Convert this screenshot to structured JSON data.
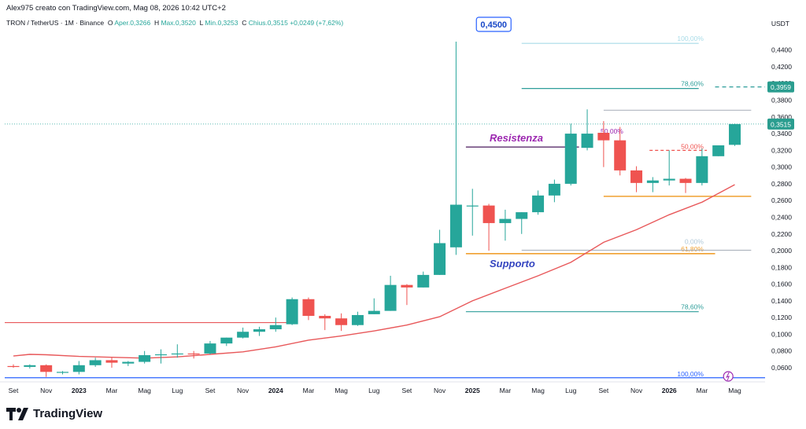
{
  "header": {
    "created_line": "Alex975 creato con TradingView.com, Mag 08, 2026 10:42 UTC+2",
    "symbol_line": "TRON / TetherUS · 1M · Binance",
    "ohlc": {
      "o_label": "O",
      "o_value": "Aper.0,3266",
      "h_label": "H",
      "h_value": "Max.0,3520",
      "l_label": "L",
      "l_value": "Min.0,3253",
      "c_label": "C",
      "c_value": "Chius.0,3515",
      "change": "+0,0249 (+7,62%)"
    }
  },
  "brand": {
    "name": "TradingView"
  },
  "colors": {
    "up": "#26a69a",
    "down": "#ef5350",
    "ma": "#e8585a",
    "blue": "#2962ff",
    "fib": "#2e9e9a",
    "orange": "#f0a030",
    "purple": "#9c27b0"
  },
  "chart_data": {
    "type": "candlestick",
    "symbol": "TRON / TetherUS",
    "interval": "1M",
    "exchange": "Binance",
    "y_unit": "USDT",
    "y_ticks": [
      "0,4400",
      "0,4200",
      "0,4000",
      "0,3800",
      "0,3600",
      "0,3400",
      "0,3200",
      "0,3000",
      "0,2800",
      "0,2600",
      "0,2400",
      "0,2200",
      "0,2000",
      "0,1800",
      "0,1600",
      "0,1400",
      "0,1200",
      "0,1000",
      "0,0800",
      "0,0600"
    ],
    "x_ticks": [
      {
        "label": "Set",
        "i": 0
      },
      {
        "label": "Nov",
        "i": 2
      },
      {
        "label": "2023",
        "i": 4,
        "bold": true
      },
      {
        "label": "Mar",
        "i": 6
      },
      {
        "label": "Mag",
        "i": 8
      },
      {
        "label": "Lug",
        "i": 10
      },
      {
        "label": "Set",
        "i": 12
      },
      {
        "label": "Nov",
        "i": 14
      },
      {
        "label": "2024",
        "i": 16,
        "bold": true
      },
      {
        "label": "Mar",
        "i": 18
      },
      {
        "label": "Mag",
        "i": 20
      },
      {
        "label": "Lug",
        "i": 22
      },
      {
        "label": "Set",
        "i": 24
      },
      {
        "label": "Nov",
        "i": 26
      },
      {
        "label": "2025",
        "i": 28,
        "bold": true
      },
      {
        "label": "Mar",
        "i": 30
      },
      {
        "label": "Mag",
        "i": 32
      },
      {
        "label": "Lug",
        "i": 34
      },
      {
        "label": "Set",
        "i": 36
      },
      {
        "label": "Nov",
        "i": 38
      },
      {
        "label": "2026",
        "i": 40,
        "bold": true
      },
      {
        "label": "Mar",
        "i": 42
      },
      {
        "label": "Mag",
        "i": 44
      }
    ],
    "candles": [
      {
        "o": 0.062,
        "h": 0.064,
        "l": 0.06,
        "c": 0.061
      },
      {
        "o": 0.061,
        "h": 0.064,
        "l": 0.059,
        "c": 0.063
      },
      {
        "o": 0.063,
        "h": 0.064,
        "l": 0.049,
        "c": 0.055
      },
      {
        "o": 0.0545,
        "h": 0.056,
        "l": 0.052,
        "c": 0.055
      },
      {
        "o": 0.055,
        "h": 0.068,
        "l": 0.052,
        "c": 0.063
      },
      {
        "o": 0.063,
        "h": 0.072,
        "l": 0.061,
        "c": 0.069
      },
      {
        "o": 0.069,
        "h": 0.072,
        "l": 0.06,
        "c": 0.066
      },
      {
        "o": 0.065,
        "h": 0.068,
        "l": 0.062,
        "c": 0.067
      },
      {
        "o": 0.067,
        "h": 0.08,
        "l": 0.065,
        "c": 0.075
      },
      {
        "o": 0.075,
        "h": 0.082,
        "l": 0.065,
        "c": 0.076
      },
      {
        "o": 0.076,
        "h": 0.088,
        "l": 0.072,
        "c": 0.077
      },
      {
        "o": 0.077,
        "h": 0.08,
        "l": 0.071,
        "c": 0.076
      },
      {
        "o": 0.077,
        "h": 0.092,
        "l": 0.076,
        "c": 0.089
      },
      {
        "o": 0.089,
        "h": 0.096,
        "l": 0.086,
        "c": 0.096
      },
      {
        "o": 0.096,
        "h": 0.108,
        "l": 0.095,
        "c": 0.103
      },
      {
        "o": 0.103,
        "h": 0.109,
        "l": 0.098,
        "c": 0.106
      },
      {
        "o": 0.106,
        "h": 0.12,
        "l": 0.103,
        "c": 0.111
      },
      {
        "o": 0.112,
        "h": 0.144,
        "l": 0.111,
        "c": 0.142
      },
      {
        "o": 0.142,
        "h": 0.144,
        "l": 0.117,
        "c": 0.122
      },
      {
        "o": 0.122,
        "h": 0.124,
        "l": 0.105,
        "c": 0.119
      },
      {
        "o": 0.119,
        "h": 0.125,
        "l": 0.104,
        "c": 0.111
      },
      {
        "o": 0.111,
        "h": 0.127,
        "l": 0.11,
        "c": 0.123
      },
      {
        "o": 0.124,
        "h": 0.143,
        "l": 0.124,
        "c": 0.128
      },
      {
        "o": 0.128,
        "h": 0.17,
        "l": 0.128,
        "c": 0.159
      },
      {
        "o": 0.159,
        "h": 0.16,
        "l": 0.135,
        "c": 0.156
      },
      {
        "o": 0.156,
        "h": 0.175,
        "l": 0.156,
        "c": 0.171
      },
      {
        "o": 0.171,
        "h": 0.225,
        "l": 0.171,
        "c": 0.209
      },
      {
        "o": 0.204,
        "h": 0.45,
        "l": 0.195,
        "c": 0.255
      },
      {
        "o": 0.254,
        "h": 0.274,
        "l": 0.218,
        "c": 0.254
      },
      {
        "o": 0.254,
        "h": 0.256,
        "l": 0.2,
        "c": 0.233
      },
      {
        "o": 0.233,
        "h": 0.249,
        "l": 0.212,
        "c": 0.238
      },
      {
        "o": 0.238,
        "h": 0.246,
        "l": 0.22,
        "c": 0.246
      },
      {
        "o": 0.246,
        "h": 0.272,
        "l": 0.243,
        "c": 0.266
      },
      {
        "o": 0.266,
        "h": 0.285,
        "l": 0.258,
        "c": 0.28
      },
      {
        "o": 0.28,
        "h": 0.352,
        "l": 0.278,
        "c": 0.34
      },
      {
        "o": 0.323,
        "h": 0.369,
        "l": 0.32,
        "c": 0.34
      },
      {
        "o": 0.341,
        "h": 0.355,
        "l": 0.3,
        "c": 0.332
      },
      {
        "o": 0.332,
        "h": 0.348,
        "l": 0.29,
        "c": 0.296
      },
      {
        "o": 0.296,
        "h": 0.301,
        "l": 0.27,
        "c": 0.281
      },
      {
        "o": 0.281,
        "h": 0.288,
        "l": 0.27,
        "c": 0.284
      },
      {
        "o": 0.284,
        "h": 0.32,
        "l": 0.278,
        "c": 0.286
      },
      {
        "o": 0.286,
        "h": 0.287,
        "l": 0.269,
        "c": 0.281
      },
      {
        "o": 0.281,
        "h": 0.322,
        "l": 0.278,
        "c": 0.313
      },
      {
        "o": 0.313,
        "h": 0.326,
        "l": 0.313,
        "c": 0.326
      },
      {
        "o": 0.3266,
        "h": 0.352,
        "l": 0.3253,
        "c": 0.3515
      }
    ],
    "moving_average": [
      {
        "i": 0,
        "v": 0.074
      },
      {
        "i": 1,
        "v": 0.076
      },
      {
        "i": 2,
        "v": 0.0755
      },
      {
        "i": 4,
        "v": 0.0735
      },
      {
        "i": 8,
        "v": 0.0715
      },
      {
        "i": 10,
        "v": 0.073
      },
      {
        "i": 12,
        "v": 0.076
      },
      {
        "i": 14,
        "v": 0.079
      },
      {
        "i": 16,
        "v": 0.085
      },
      {
        "i": 18,
        "v": 0.093
      },
      {
        "i": 20,
        "v": 0.098
      },
      {
        "i": 22,
        "v": 0.104
      },
      {
        "i": 24,
        "v": 0.111
      },
      {
        "i": 26,
        "v": 0.121
      },
      {
        "i": 28,
        "v": 0.14
      },
      {
        "i": 30,
        "v": 0.155
      },
      {
        "i": 32,
        "v": 0.17
      },
      {
        "i": 34,
        "v": 0.186
      },
      {
        "i": 36,
        "v": 0.21
      },
      {
        "i": 38,
        "v": 0.225
      },
      {
        "i": 40,
        "v": 0.243
      },
      {
        "i": 42,
        "v": 0.258
      },
      {
        "i": 44,
        "v": 0.279
      }
    ],
    "long_line": {
      "v": 0.114,
      "i_end": 17,
      "color": "#e8585a"
    },
    "levels": [
      {
        "name": "resistance",
        "v": 0.324,
        "i_start": 27.6,
        "i_end": 34.5,
        "color": "#4a1a5c"
      },
      {
        "name": "support",
        "v": 0.1965,
        "i_start": 27.6,
        "i_end": 42.8,
        "color": "#f0a030"
      },
      {
        "name": "orange-level",
        "v": 0.265,
        "i_start": 36.0,
        "i_end": 45.0,
        "color": "#f0a030"
      },
      {
        "name": "grey-top",
        "v": 0.368,
        "i_start": 36.0,
        "i_end": 45.0,
        "color": "#b0b6c0"
      },
      {
        "name": "grey-low",
        "v": 0.2005,
        "i_start": 31.0,
        "i_end": 45.0,
        "color": "#b0b6c0"
      }
    ],
    "fib_left": [
      {
        "label": "100,00%",
        "v": 0.448,
        "color": "#a8dce8"
      },
      {
        "label": "78,60%",
        "v": 0.394,
        "color": "#2e9e9a"
      },
      {
        "label": "61,80%",
        "v": 0.1965,
        "color": "#f0a030"
      },
      {
        "label": "78,60%",
        "v": 0.127,
        "color": "#2e9e9a"
      },
      {
        "label": "100,00%",
        "v": 0.048,
        "color": "#2962ff"
      }
    ],
    "fib_right_labels": [
      {
        "label": "50,00%",
        "v": 0.338,
        "color": "#9c27b0"
      },
      {
        "label": "50,00%",
        "v": 0.32,
        "color": "#ef5350"
      },
      {
        "label": "0,00%",
        "v": 0.206,
        "color": "#b0c8d8"
      }
    ],
    "annotations": {
      "resistance_text": "Resistenza",
      "support_text": "Supporto",
      "callout": "0,4500",
      "price_tag_current": "0,3515",
      "price_tag_dashed": "0,3959"
    },
    "current_price": 0.3515,
    "dashed_level": 0.3959
  }
}
